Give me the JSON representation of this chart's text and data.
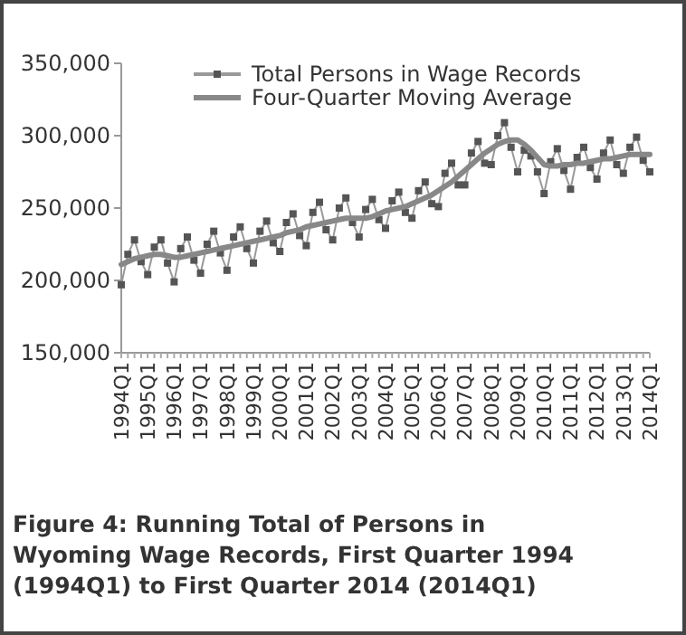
{
  "chart_data": {
    "type": "line",
    "title": "Figure 4: Running Total of Persons in Wyoming Wage Records, First Quarter 1994 (1994Q1) to First Quarter 2014 (2014Q1)",
    "categories": [
      "1994Q1",
      null,
      null,
      null,
      "1995Q1",
      null,
      null,
      null,
      "1996Q1",
      null,
      null,
      null,
      "1997Q1",
      null,
      null,
      null,
      "1998Q1",
      null,
      null,
      null,
      "1999Q1",
      null,
      null,
      null,
      "2000Q1",
      null,
      null,
      null,
      "2001Q1",
      null,
      null,
      null,
      "2002Q1",
      null,
      null,
      null,
      "2003Q1",
      null,
      null,
      null,
      "2004Q1",
      null,
      null,
      null,
      "2005Q1",
      null,
      null,
      null,
      "2006Q1",
      null,
      null,
      null,
      "2007Q1",
      null,
      null,
      null,
      "2008Q1",
      null,
      null,
      null,
      "2009Q1",
      null,
      null,
      null,
      "2010Q1",
      null,
      null,
      null,
      "2011Q1",
      null,
      null,
      null,
      "2012Q1",
      null,
      null,
      null,
      "2013Q1",
      null,
      null,
      null,
      "2014Q1"
    ],
    "series": [
      {
        "name": "Total Persons in Wage Records",
        "color": "#999999",
        "marker": "square",
        "line_style": "solid",
        "values": [
          197000,
          218000,
          228000,
          213000,
          204000,
          223000,
          228000,
          212000,
          199000,
          222000,
          230000,
          214000,
          205000,
          225000,
          234000,
          219000,
          207000,
          230000,
          237000,
          222000,
          212000,
          234000,
          241000,
          226000,
          220000,
          240000,
          246000,
          231000,
          224000,
          247000,
          254000,
          235000,
          228000,
          250000,
          257000,
          240000,
          230000,
          249000,
          256000,
          242000,
          236000,
          255000,
          261000,
          247000,
          243000,
          262000,
          268000,
          253000,
          251000,
          274000,
          281000,
          266000,
          266000,
          288000,
          296000,
          281000,
          280000,
          300000,
          309000,
          292000,
          275000,
          290000,
          286000,
          275000,
          260000,
          282000,
          291000,
          276000,
          263000,
          285000,
          292000,
          278000,
          270000,
          288000,
          297000,
          280000,
          274000,
          292000,
          299000,
          283000,
          275000
        ]
      },
      {
        "name": "Four-Quarter Moving Average",
        "color": "#888888",
        "marker": "none",
        "line_style": "solid",
        "values": [
          211000,
          213000,
          215000,
          216000,
          217000,
          218000,
          218000,
          217000,
          216000,
          216000,
          217000,
          218000,
          219000,
          220000,
          221000,
          222000,
          223000,
          224000,
          225000,
          226000,
          227000,
          228000,
          229000,
          230000,
          231000,
          233000,
          234000,
          235000,
          237000,
          238000,
          239000,
          240000,
          241000,
          242000,
          243000,
          243000,
          243000,
          243000,
          244000,
          246000,
          248000,
          249000,
          250000,
          251000,
          253000,
          255000,
          257000,
          259000,
          262000,
          265000,
          268000,
          272000,
          276000,
          280000,
          284000,
          288000,
          291000,
          294000,
          296000,
          297000,
          297000,
          294000,
          290000,
          285000,
          280000,
          279000,
          279000,
          280000,
          280000,
          281000,
          281000,
          282000,
          283000,
          284000,
          284000,
          285000,
          286000,
          287000,
          287000,
          287000,
          287000
        ]
      }
    ],
    "ylim": [
      150000,
      350000
    ],
    "yticks": [
      {
        "value": 150000,
        "label": "150,000"
      },
      {
        "value": 200000,
        "label": "200,000"
      },
      {
        "value": 250000,
        "label": "250,000"
      },
      {
        "value": 300000,
        "label": "300,000"
      },
      {
        "value": 350000,
        "label": "350,000"
      }
    ],
    "grid": false,
    "legend": "top"
  }
}
